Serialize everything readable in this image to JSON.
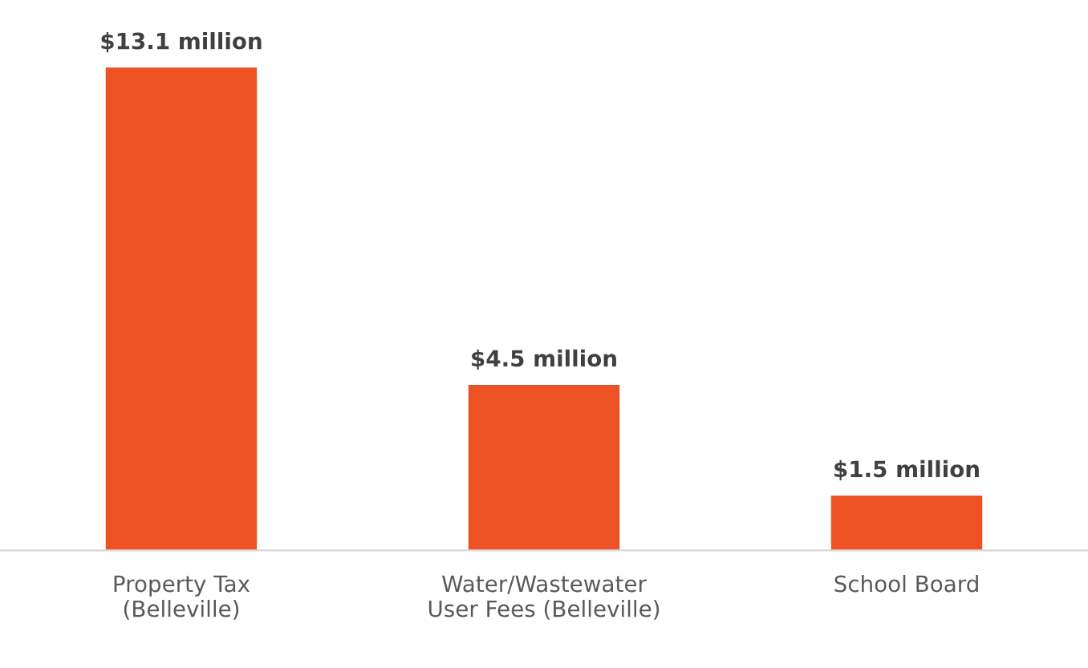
{
  "chart_data": {
    "type": "bar",
    "categories": [
      "Property Tax\n(Belleville)",
      "Water/Wastewater\nUser Fees (Belleville)",
      "School Board"
    ],
    "values": [
      13.1,
      4.5,
      1.5
    ],
    "value_labels": [
      "$13.1 million",
      "$4.5 million",
      "$1.5 million"
    ],
    "color": "#ee5124",
    "grid": false,
    "legend": false
  }
}
